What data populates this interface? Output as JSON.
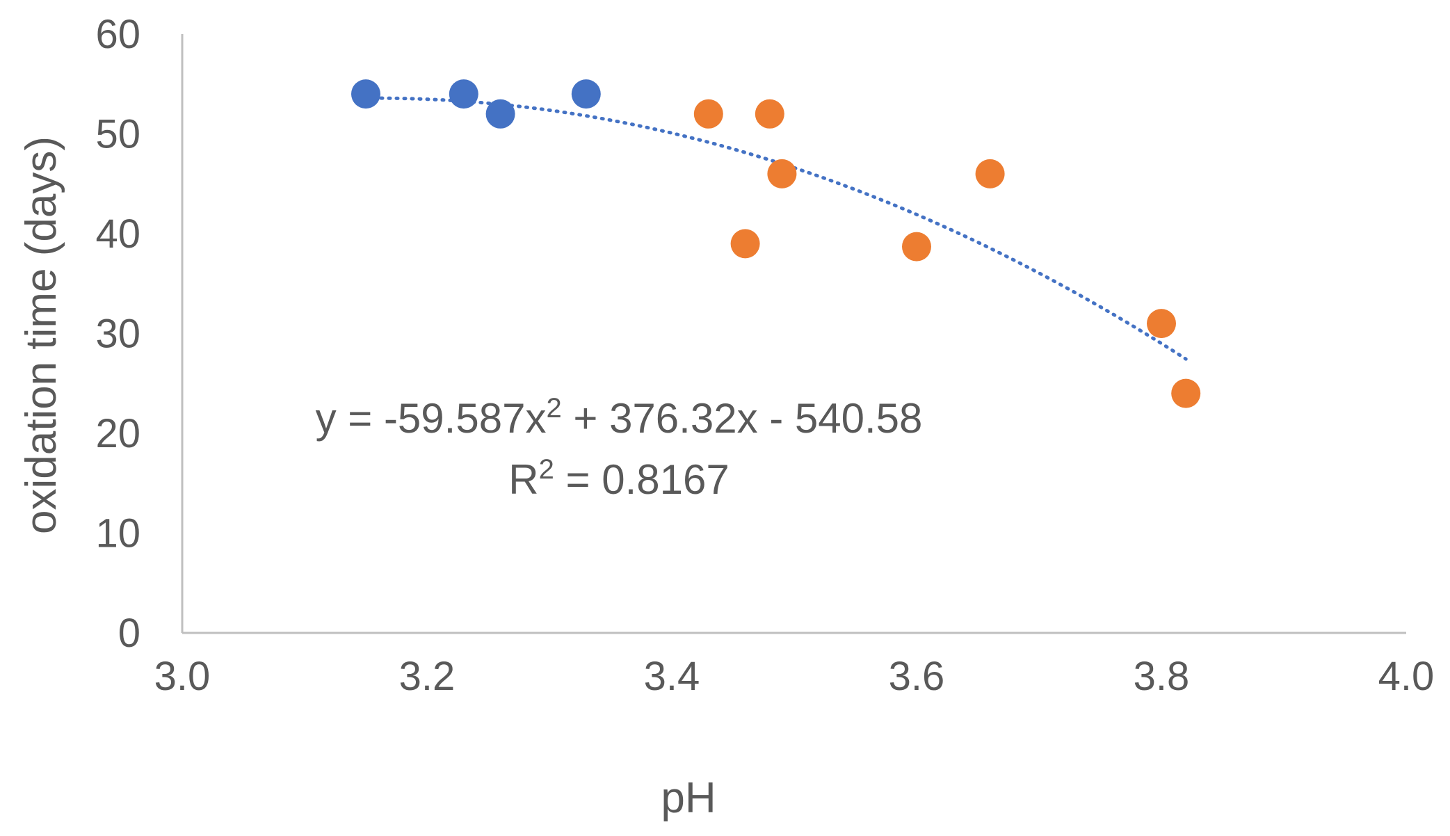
{
  "chart_data": {
    "type": "scatter",
    "xlabel": "pH",
    "ylabel": "oxidation time (days)",
    "xlim": [
      3.0,
      4.0
    ],
    "ylim": [
      0,
      60
    ],
    "x_ticks": [
      3.0,
      3.2,
      3.4,
      3.6,
      3.8,
      4.0
    ],
    "x_tick_labels": [
      "3.0",
      "3.2",
      "3.4",
      "3.6",
      "3.8",
      "4.0"
    ],
    "y_ticks": [
      0,
      10,
      20,
      30,
      40,
      50,
      60
    ],
    "y_tick_labels": [
      "0",
      "10",
      "20",
      "30",
      "40",
      "50",
      "60"
    ],
    "grid": false,
    "legend": "none",
    "series": [
      {
        "color": "#4472C4",
        "points": [
          {
            "x": 3.15,
            "y": 54
          },
          {
            "x": 3.23,
            "y": 54
          },
          {
            "x": 3.26,
            "y": 52
          },
          {
            "x": 3.33,
            "y": 54
          }
        ]
      },
      {
        "color": "#ED7D31",
        "points": [
          {
            "x": 3.43,
            "y": 52
          },
          {
            "x": 3.48,
            "y": 52
          },
          {
            "x": 3.49,
            "y": 46
          },
          {
            "x": 3.46,
            "y": 39
          },
          {
            "x": 3.6,
            "y": 38.7
          },
          {
            "x": 3.66,
            "y": 46
          },
          {
            "x": 3.8,
            "y": 31
          },
          {
            "x": 3.82,
            "y": 24
          }
        ]
      }
    ],
    "trendline": {
      "type": "polynomial",
      "order": 2,
      "coefficients": [
        -59.587,
        376.32,
        -540.58
      ],
      "x_range": [
        3.15,
        3.82
      ],
      "color": "#4472C4",
      "style": "dotted"
    },
    "annotations": {
      "equation_prefix": "y = -59.587x",
      "equation_exp": "2",
      "equation_suffix": " + 376.32x - 540.58",
      "r2_prefix": "R",
      "r2_exp": "2",
      "r2_suffix": " = 0.8167"
    }
  }
}
